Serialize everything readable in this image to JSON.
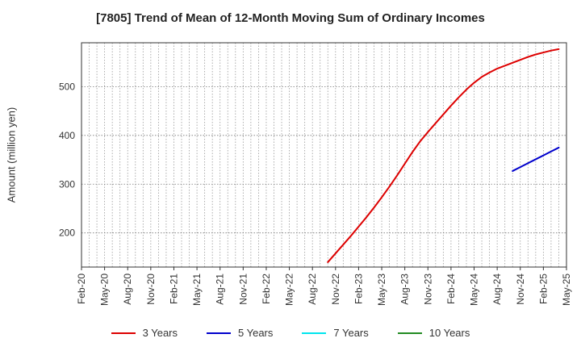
{
  "chart_data": {
    "type": "line",
    "title": "[7805]  Trend of Mean of 12-Month Moving Sum of Ordinary Incomes",
    "ylabel": "Amount (million yen)",
    "xlabel": "",
    "categories": [
      "Feb-20",
      "May-20",
      "Aug-20",
      "Nov-20",
      "Feb-21",
      "May-21",
      "Aug-21",
      "Nov-21",
      "Feb-22",
      "May-22",
      "Aug-22",
      "Nov-22",
      "Feb-23",
      "May-23",
      "Aug-23",
      "Nov-23",
      "Feb-24",
      "May-24",
      "Aug-24",
      "Nov-24",
      "Feb-25",
      "May-25"
    ],
    "ylim": [
      130,
      590
    ],
    "yticks": [
      200,
      300,
      400,
      500
    ],
    "grid": true,
    "legend_position": "bottom",
    "series": [
      {
        "name": "3 Years",
        "color": "#dd0000",
        "points": [
          [
            "Oct-22",
            140
          ],
          [
            "Nov-22",
            158
          ],
          [
            "Dec-22",
            176
          ],
          [
            "Jan-23",
            194
          ],
          [
            "Feb-23",
            213
          ],
          [
            "Mar-23",
            232
          ],
          [
            "Apr-23",
            252
          ],
          [
            "May-23",
            273
          ],
          [
            "Jun-23",
            295
          ],
          [
            "Jul-23",
            318
          ],
          [
            "Aug-23",
            342
          ],
          [
            "Sep-23",
            366
          ],
          [
            "Oct-23",
            388
          ],
          [
            "Nov-23",
            407
          ],
          [
            "Dec-23",
            425
          ],
          [
            "Jan-24",
            443
          ],
          [
            "Feb-24",
            461
          ],
          [
            "Mar-24",
            478
          ],
          [
            "Apr-24",
            494
          ],
          [
            "May-24",
            508
          ],
          [
            "Jun-24",
            520
          ],
          [
            "Jul-24",
            529
          ],
          [
            "Aug-24",
            537
          ],
          [
            "Sep-24",
            543
          ],
          [
            "Oct-24",
            549
          ],
          [
            "Nov-24",
            555
          ],
          [
            "Dec-24",
            561
          ],
          [
            "Jan-25",
            566
          ],
          [
            "Feb-25",
            570
          ],
          [
            "Mar-25",
            574
          ],
          [
            "Apr-25",
            577
          ]
        ]
      },
      {
        "name": "5 Years",
        "color": "#0000cc",
        "points": [
          [
            "Oct-24",
            327
          ],
          [
            "Nov-24",
            335
          ],
          [
            "Dec-24",
            343
          ],
          [
            "Jan-25",
            351
          ],
          [
            "Feb-25",
            359
          ],
          [
            "Mar-25",
            367
          ],
          [
            "Apr-25",
            375
          ]
        ]
      },
      {
        "name": "7 Years",
        "color": "#00e5ee",
        "points": []
      },
      {
        "name": "10 Years",
        "color": "#228b22",
        "points": []
      }
    ]
  }
}
